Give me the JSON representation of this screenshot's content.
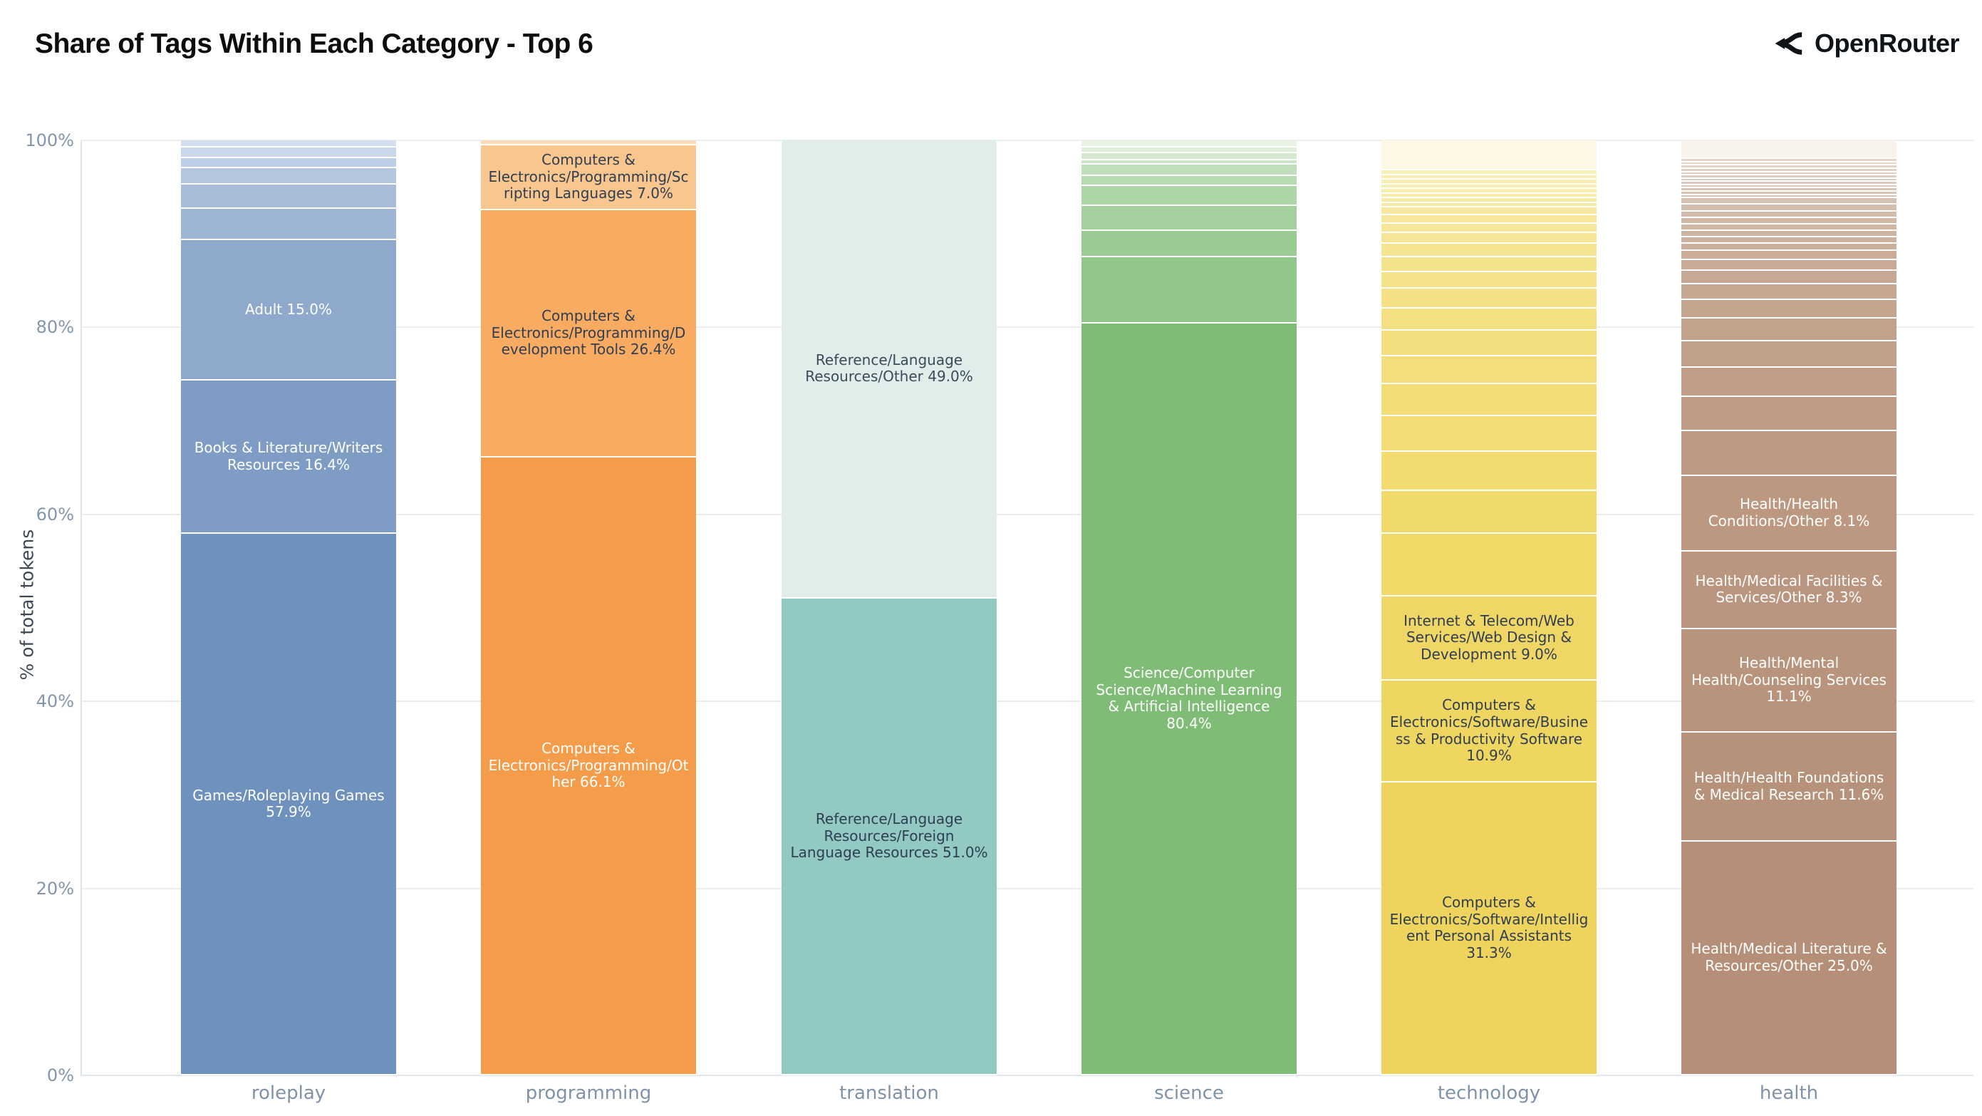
{
  "title": "Share of Tags Within Each Category - Top 6",
  "logo": {
    "icon": "route-fork-icon",
    "text": "OpenRouter"
  },
  "y_axis": {
    "title": "% of total tokens",
    "ticks": [
      {
        "label": "100%",
        "pct": 100
      },
      {
        "label": "80%",
        "pct": 80
      },
      {
        "label": "60%",
        "pct": 60
      },
      {
        "label": "40%",
        "pct": 40
      },
      {
        "label": "20%",
        "pct": 20
      },
      {
        "label": "0%",
        "pct": 0
      }
    ]
  },
  "colors": {
    "title_text": "#0d0d0d",
    "logo_text": "#0f1419",
    "grid": "#ededed",
    "tick_label": "#8496ab",
    "category_label": "#7f93a8",
    "dark_segment_label": "#2f3e53",
    "light_segment_label": "#ffffff"
  },
  "chart_data": {
    "type": "bar",
    "stacked": true,
    "unit": "%",
    "title": "Share of Tags Within Each Category - Top 6",
    "ylabel": "% of total tokens",
    "ylim": [
      0,
      100
    ],
    "grid": "horizontal",
    "legend": "none",
    "categories": [
      "roleplay",
      "programming",
      "translation",
      "science",
      "technology",
      "health"
    ],
    "note": "Segments listed top-to-bottom; unlabeled runs are small tail tags read from the chart; values in % of total tokens",
    "bars": [
      {
        "category": "roleplay",
        "segments": [
          {
            "values": [
              0.8,
              1.1,
              1.1,
              1.7,
              2.6,
              3.4
            ],
            "from": "#d3dfee",
            "to": "#9eb5d4"
          },
          {
            "value": 15.0,
            "color": "#8ea9cb",
            "label": "Adult 15.0%",
            "text": "#ffffff"
          },
          {
            "value": 16.4,
            "color": "#7f9cc4",
            "label": "Books & Literature/Writers Resources 16.4%",
            "text": "#ffffff"
          },
          {
            "value": 57.9,
            "color": "#6f91bd",
            "label": "Games/Roleplaying Games 57.9%",
            "text": "#ffffff"
          }
        ]
      },
      {
        "category": "programming",
        "segments": [
          {
            "values": [
              0.5
            ],
            "from": "#fbdcb6",
            "to": "#fbdcb6"
          },
          {
            "value": 7.0,
            "color": "#f9c68d",
            "label": "Computers & Electronics/Programming/Scripting Languages 7.0%",
            "text": "#2f3e53"
          },
          {
            "value": 26.4,
            "color": "#f8ab61",
            "label": "Computers & Electronics/Programming/Development Tools 26.4%",
            "text": "#2f3e53"
          },
          {
            "value": 66.1,
            "color": "#f59c4b",
            "label": "Computers & Electronics/Programming/Other 66.1%",
            "text": "#ffffff"
          }
        ]
      },
      {
        "category": "translation",
        "segments": [
          {
            "value": 49.0,
            "color": "#dfeeea",
            "label": "Reference/Language Resources/Other 49.0%",
            "text": "#3c4a5a"
          },
          {
            "value": 51.0,
            "color": "#92cac3",
            "label": "Reference/Language Resources/Foreign Language Resources 51.0%",
            "text": "#2f3e53"
          }
        ]
      },
      {
        "category": "science",
        "segments": [
          {
            "values": [
              0.8,
              0.6,
              0.7,
              0.5,
              1.2,
              1.1,
              2.1,
              2.7,
              2.8,
              7.1
            ],
            "from": "#e8f3e4",
            "to": "#90c689"
          },
          {
            "value": 80.4,
            "color": "#7fbc76",
            "label": "Science/Computer Science/Machine Learning & Artificial Intelligence 80.4%",
            "text": "#ffffff"
          }
        ]
      },
      {
        "category": "technology",
        "segments": [
          {
            "value": 3.2,
            "color": "#fcf8e4"
          },
          {
            "values": [
              0.5,
              0.5,
              0.5,
              0.5,
              0.5,
              0.5,
              0.5,
              0.5
            ],
            "from": "#f9f0b8",
            "to": "#f6eaa6"
          },
          {
            "values": [
              0.8,
              0.9,
              1.0,
              1.2,
              1.4,
              1.6,
              1.8,
              2.1,
              2.4,
              2.7,
              3.0,
              3.4,
              3.8,
              4.2,
              4.6,
              6.7
            ],
            "from": "#f6e8a0",
            "to": "#f1d968"
          },
          {
            "value": 9.0,
            "color": "#f0d765",
            "label": "Internet & Telecom/Web Services/Web Design & Development 9.0%",
            "text": "#2f3e53"
          },
          {
            "value": 10.9,
            "color": "#efd660",
            "label": "Computers & Electronics/Software/Business & Productivity Software 10.9%",
            "text": "#2f3e53"
          },
          {
            "value": 31.3,
            "color": "#eed45c",
            "label": "Computers & Electronics/Software/Intelligent Personal Assistants 31.3%",
            "text": "#2f3e53"
          }
        ]
      },
      {
        "category": "health",
        "segments": [
          {
            "value": 2.0,
            "color": "#f8f4ed"
          },
          {
            "values": [
              0.35,
              0.35,
              0.35,
              0.35,
              0.35,
              0.35,
              0.35,
              0.35,
              0.35,
              0.35,
              0.35,
              0.35
            ],
            "from": "#e5d6cb",
            "to": "#d8c3b4"
          },
          {
            "values": [
              0.7,
              0.7,
              0.7,
              0.7,
              0.7,
              0.7,
              0.7,
              0.7
            ],
            "from": "#d6c0b0",
            "to": "#cbb09d"
          },
          {
            "values": [
              1.0,
              1.2,
              1.4,
              1.7,
              2.0,
              2.4,
              2.8,
              3.2,
              3.6,
              4.8
            ],
            "from": "#c9ad99",
            "to": "#bd9a83"
          },
          {
            "value": 8.1,
            "color": "#bc9881",
            "label": "Health/Health Conditions/Other 8.1%",
            "text": "#ffffff"
          },
          {
            "value": 8.3,
            "color": "#ba9680",
            "label": "Health/Medical Facilities & Services/Other 8.3%",
            "text": "#ffffff"
          },
          {
            "value": 11.1,
            "color": "#b9947d",
            "label": "Health/Mental Health/Counseling Services 11.1%",
            "text": "#ffffff"
          },
          {
            "value": 11.6,
            "color": "#b7927a",
            "label": "Health/Health Foundations & Medical Research 11.6%",
            "text": "#ffffff"
          },
          {
            "value": 25.0,
            "color": "#b58f77",
            "label": "Health/Medical Literature & Resources/Other 25.0%",
            "text": "#ffffff"
          }
        ]
      }
    ]
  }
}
